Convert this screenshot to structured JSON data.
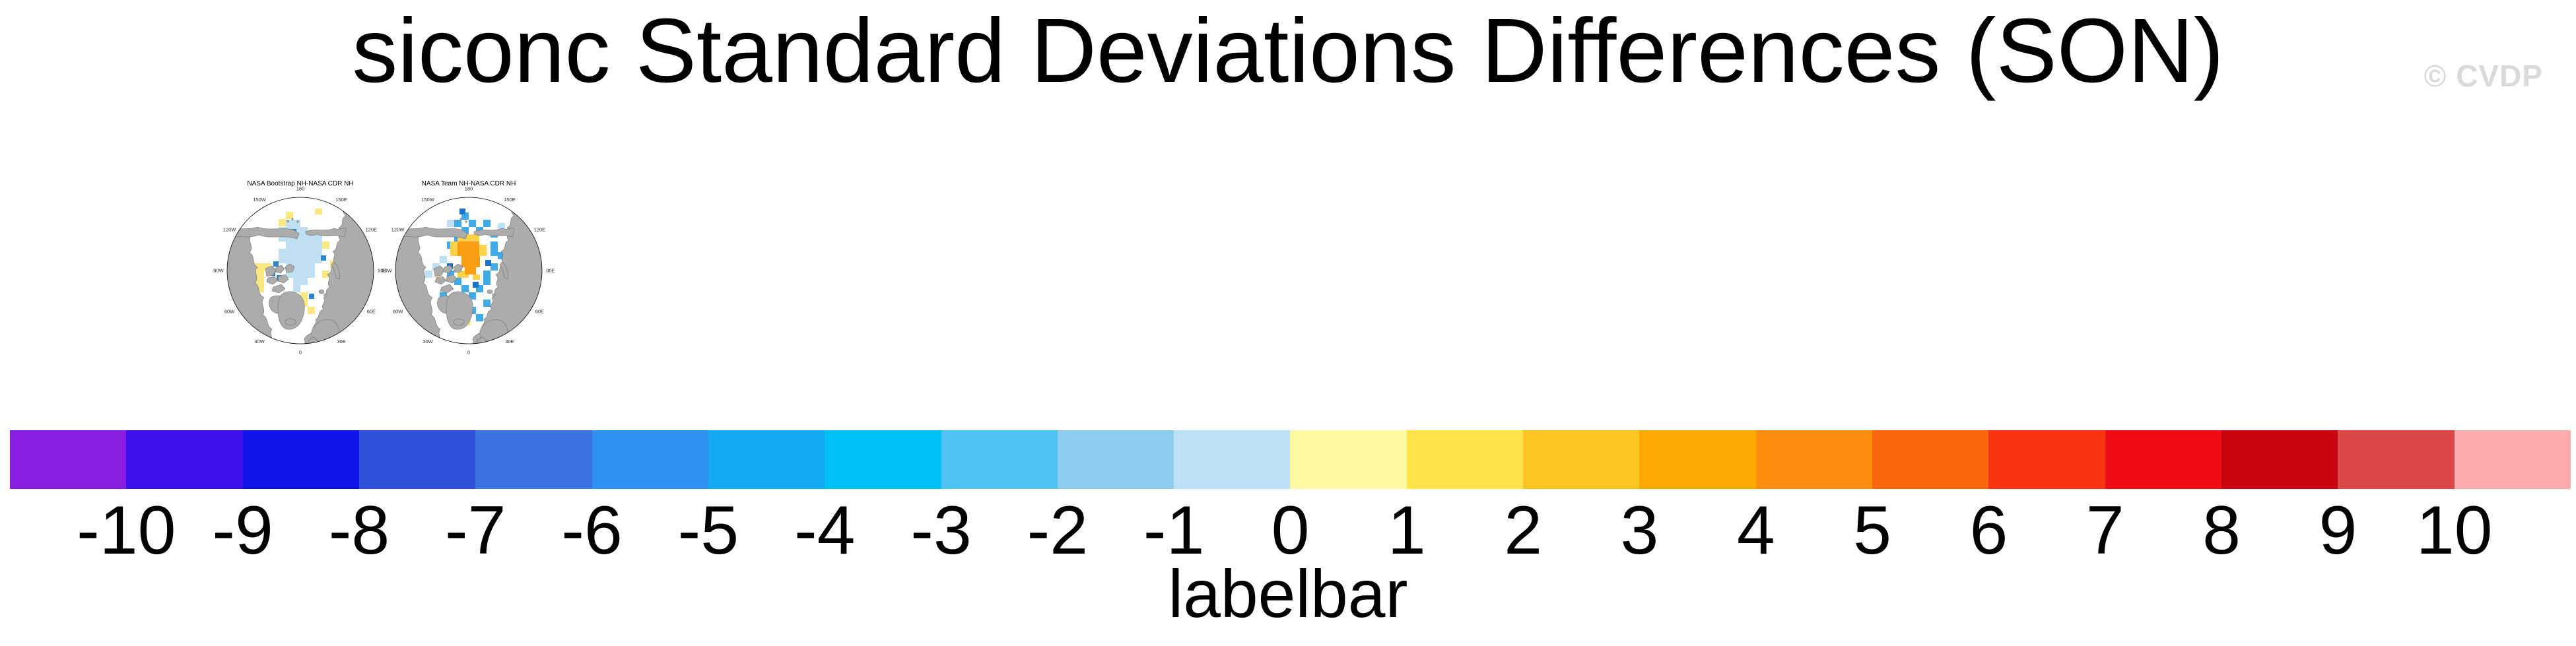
{
  "page": {
    "title": "siconc Standard Deviations Differences (SON)",
    "watermark": "© CVDP",
    "background": "#ffffff"
  },
  "maps": {
    "panels": [
      {
        "title": "NASA Bootstrap NH-NASA CDR NH"
      },
      {
        "title": "NASA Team NH-NASA CDR NH"
      }
    ],
    "lon_labels": [
      "180",
      "150E",
      "120E",
      "90E",
      "60E",
      "30E",
      "0",
      "30W",
      "60W",
      "90W",
      "120W",
      "150W"
    ],
    "projection": "north polar stereographic",
    "land_color": "#acacac",
    "coast_color": "#6f6f6f"
  },
  "labelbar": {
    "title": "labelbar",
    "tick_labels": [
      "-10",
      "-9",
      "-8",
      "-7",
      "-6",
      "-5",
      "-4",
      "-3",
      "-2",
      "-1",
      "0",
      "1",
      "2",
      "3",
      "4",
      "5",
      "6",
      "7",
      "8",
      "9",
      "10"
    ],
    "colors": [
      "#8A1EE0",
      "#3B10ED",
      "#1113EB",
      "#3050DA",
      "#3B74DF",
      "#2D93EE",
      "#12A8F2",
      "#00C0F8",
      "#4EC3F2",
      "#8FCBEC",
      "#BCE0F5",
      "#FEF9A2",
      "#FEE34B",
      "#FDC522",
      "#FEA801",
      "#FB8E0D",
      "#FA660C",
      "#F93410",
      "#EE0D15",
      "#CA0310",
      "#DB4646",
      "#FDACAE"
    ]
  },
  "chart_data": {
    "type": "heatmap",
    "title": "siconc Standard Deviations Differences (SON)",
    "subtitle": "",
    "panels": [
      {
        "name": "NASA Bootstrap NH-NASA CDR NH",
        "description": "North polar stereographic difference map: pale-blue negative anomalies (-1 to 0) over central Arctic with scattered yellow (0 to 2) patches over Canadian Archipelago, Beaufort and Kara coast, few darker blue (-6 to -4) cells"
      },
      {
        "name": "NASA Team NH-NASA CDR NH",
        "description": "North polar stereographic difference map: orange core (3 to 5) with gold fringe (1 to 3) near the pole, surrounded by medium blue (-5 to -3) and pale blue (-1 to 0) cells"
      }
    ],
    "colorbar": {
      "label": "labelbar",
      "levels": [
        -10,
        -9,
        -8,
        -7,
        -6,
        -5,
        -4,
        -3,
        -2,
        -1,
        0,
        1,
        2,
        3,
        4,
        5,
        6,
        7,
        8,
        9,
        10
      ],
      "colors": [
        "#8A1EE0",
        "#3B10ED",
        "#1113EB",
        "#3050DA",
        "#3B74DF",
        "#2D93EE",
        "#12A8F2",
        "#00C0F8",
        "#4EC3F2",
        "#8FCBEC",
        "#BCE0F5",
        "#FEF9A2",
        "#FEE34B",
        "#FDC522",
        "#FEA801",
        "#FB8E0D",
        "#FA660C",
        "#F93410",
        "#EE0D15",
        "#CA0310",
        "#DB4646",
        "#FDACAE"
      ],
      "orientation": "horizontal"
    },
    "legend_position": "bottom",
    "grid": false
  }
}
